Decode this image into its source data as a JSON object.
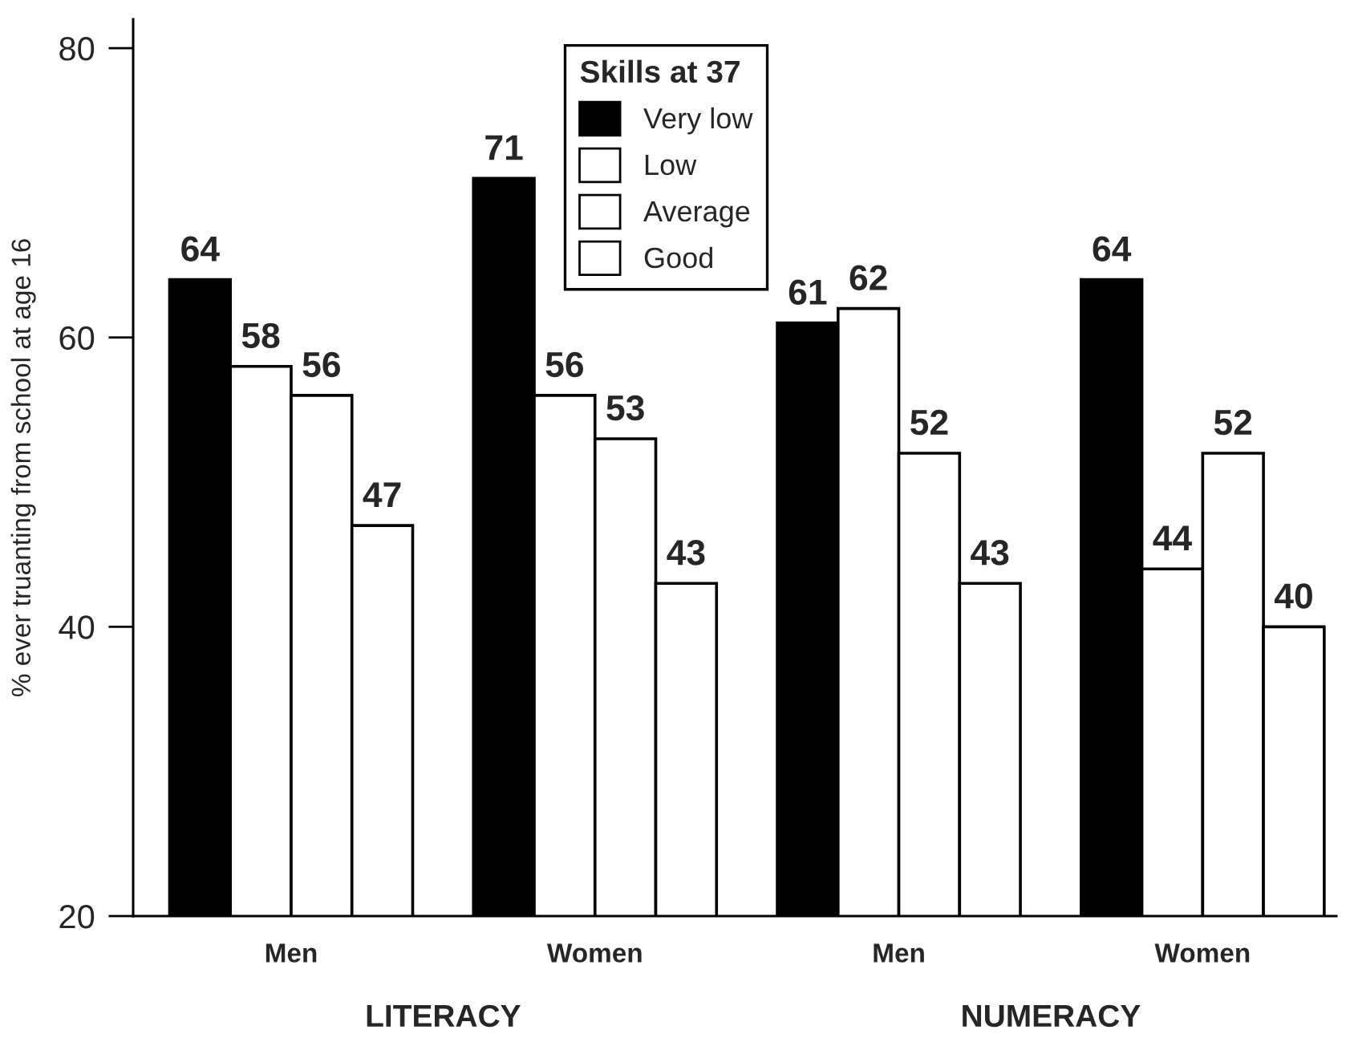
{
  "chart_data": {
    "type": "bar",
    "categories": [
      "Men",
      "Women",
      "Men",
      "Women"
    ],
    "series": [
      {
        "name": "Very low",
        "color": "#000000",
        "values": [
          64,
          71,
          61,
          64
        ]
      },
      {
        "name": "Low",
        "color": "#ffffff",
        "values": [
          58,
          56,
          62,
          44
        ]
      },
      {
        "name": "Average",
        "color": "#ffffff",
        "values": [
          56,
          53,
          52,
          52
        ]
      },
      {
        "name": "Good",
        "color": "#ffffff",
        "values": [
          47,
          43,
          43,
          40
        ]
      }
    ],
    "ylabel": "% ever truanting from school at age 16",
    "legend_title": "Skills at 37",
    "annotations": [
      "LITERACY",
      "NUMERACY"
    ],
    "ylim": [
      20,
      82
    ],
    "yticks": [
      20,
      40,
      60,
      80
    ],
    "data_labels": true,
    "legend": "top"
  }
}
